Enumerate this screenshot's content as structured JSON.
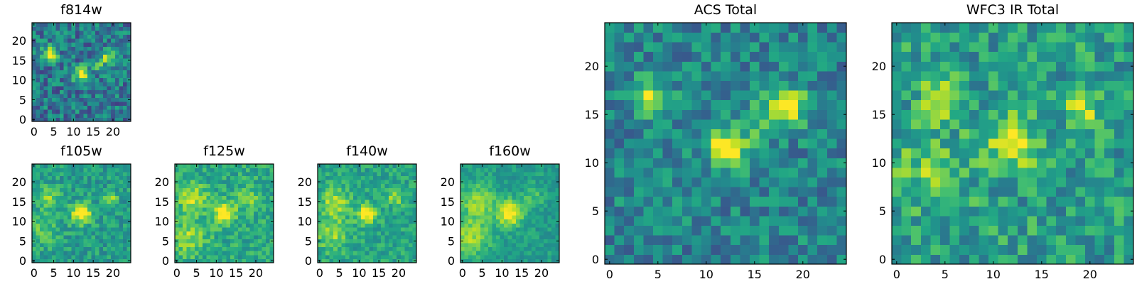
{
  "colormap": "viridis",
  "chart_data": [
    {
      "type": "heatmap",
      "title": "f814w",
      "xlim": [
        -0.5,
        24.5
      ],
      "ylim": [
        -0.5,
        24.5
      ],
      "xticks": [
        0,
        5,
        10,
        15,
        20
      ],
      "yticks": [
        0,
        5,
        10,
        15,
        20
      ],
      "sources": [
        [
          4,
          16.5,
          0.55,
          1.3
        ],
        [
          12,
          11.5,
          0.6,
          1.3
        ],
        [
          19,
          16,
          0.55,
          1.3
        ],
        [
          16,
          14,
          0.25,
          1.5
        ]
      ],
      "base": 0.4,
      "noise": 0.22,
      "seed": 11
    },
    {
      "type": "heatmap",
      "title": "f105w",
      "xlim": [
        -0.5,
        24.5
      ],
      "ylim": [
        -0.5,
        24.5
      ],
      "xticks": [
        0,
        5,
        10,
        15,
        20
      ],
      "yticks": [
        0,
        5,
        10,
        15,
        20
      ],
      "sources": [
        [
          12,
          12,
          0.55,
          1.8
        ],
        [
          19.5,
          16,
          0.4,
          1.1
        ],
        [
          4,
          16,
          0.25,
          2
        ],
        [
          2,
          8,
          0.2,
          3
        ]
      ],
      "base": 0.55,
      "noise": 0.14,
      "seed": 23
    },
    {
      "type": "heatmap",
      "title": "f125w",
      "xlim": [
        -0.5,
        24.5
      ],
      "ylim": [
        -0.5,
        24.5
      ],
      "xticks": [
        0,
        5,
        10,
        15,
        20
      ],
      "yticks": [
        0,
        5,
        10,
        15,
        20
      ],
      "sources": [
        [
          12,
          12,
          0.5,
          1.8
        ],
        [
          4,
          16,
          0.3,
          2.5
        ],
        [
          3,
          6,
          0.25,
          3
        ],
        [
          18,
          16,
          0.2,
          2
        ]
      ],
      "base": 0.6,
      "noise": 0.14,
      "seed": 37
    },
    {
      "type": "heatmap",
      "title": "f140w",
      "xlim": [
        -0.5,
        24.5
      ],
      "ylim": [
        -0.5,
        24.5
      ],
      "xticks": [
        0,
        5,
        10,
        15,
        20
      ],
      "yticks": [
        0,
        5,
        10,
        15,
        20
      ],
      "sources": [
        [
          12,
          12,
          0.5,
          1.7
        ],
        [
          4,
          15,
          0.3,
          2.5
        ],
        [
          3,
          7,
          0.25,
          3
        ],
        [
          19,
          16,
          0.25,
          1.5
        ]
      ],
      "base": 0.58,
      "noise": 0.13,
      "seed": 41
    },
    {
      "type": "heatmap",
      "title": "f160w",
      "xlim": [
        -0.5,
        24.5
      ],
      "ylim": [
        -0.5,
        24.5
      ],
      "xticks": [
        0,
        5,
        10,
        15,
        20
      ],
      "yticks": [
        0,
        5,
        10,
        15,
        20
      ],
      "sources": [
        [
          12,
          12,
          0.5,
          2.2
        ],
        [
          4,
          15,
          0.3,
          3
        ],
        [
          2,
          6,
          0.3,
          3.5
        ],
        [
          18,
          16,
          0.15,
          2
        ]
      ],
      "base": 0.55,
      "noise": 0.1,
      "seed": 53
    },
    {
      "type": "heatmap",
      "title": "ACS Total",
      "xlim": [
        -0.5,
        24.5
      ],
      "ylim": [
        -0.5,
        24.5
      ],
      "xticks": [
        0,
        5,
        10,
        15,
        20
      ],
      "yticks": [
        0,
        5,
        10,
        15,
        20
      ],
      "sources": [
        [
          4.5,
          16.5,
          0.5,
          1.4
        ],
        [
          12,
          11.5,
          0.6,
          1.4
        ],
        [
          18.5,
          16,
          0.55,
          1.4
        ],
        [
          15.5,
          14,
          0.25,
          1.5
        ]
      ],
      "base": 0.45,
      "noise": 0.18,
      "seed": 67
    },
    {
      "type": "heatmap",
      "title": "WFC3 IR Total",
      "xlim": [
        -0.5,
        24.5
      ],
      "ylim": [
        -0.5,
        24.5
      ],
      "xticks": [
        0,
        5,
        10,
        15,
        20
      ],
      "yticks": [
        0,
        5,
        10,
        15,
        20
      ],
      "sources": [
        [
          12,
          12,
          0.45,
          1.8
        ],
        [
          4.5,
          16.5,
          0.4,
          1.4
        ],
        [
          19,
          15.5,
          0.35,
          1.2
        ],
        [
          3,
          9,
          0.2,
          3
        ]
      ],
      "base": 0.55,
      "noise": 0.2,
      "seed": 79
    }
  ]
}
